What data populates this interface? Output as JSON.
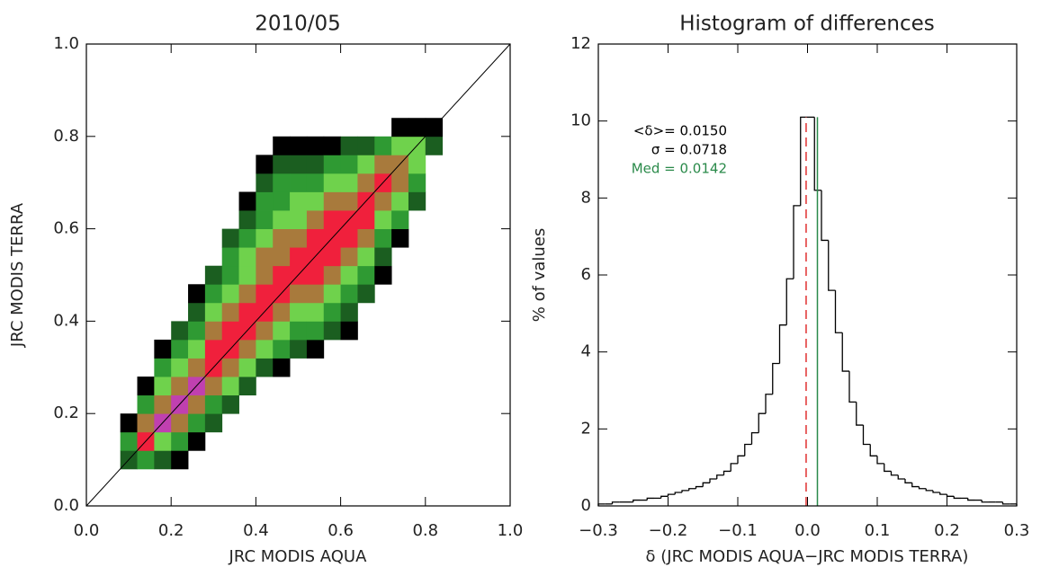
{
  "chart_data": [
    {
      "type": "heatmap",
      "title": "2010/05",
      "xlabel": "JRC MODIS AQUA",
      "ylabel": "JRC MODIS TERRA",
      "xlim": [
        0,
        1
      ],
      "ylim": [
        0,
        1
      ],
      "xticks": [
        {
          "value": 0,
          "label": "0.0"
        },
        0.2,
        0.4,
        0.6,
        0.8,
        {
          "value": 1,
          "label": "1.0"
        }
      ],
      "yticks": [
        {
          "value": 0,
          "label": "0.0"
        },
        0.2,
        0.4,
        0.6,
        0.8,
        {
          "value": 1,
          "label": "1.0"
        }
      ],
      "xbins": [
        0.08,
        0.12,
        0.16,
        0.2,
        0.24,
        0.28,
        0.32,
        0.36,
        0.4,
        0.44,
        0.48,
        0.52,
        0.56,
        0.6,
        0.64,
        0.68,
        0.72,
        0.76,
        0.8,
        0.84
      ],
      "ybins": [
        0.08,
        0.12,
        0.16,
        0.2,
        0.24,
        0.28,
        0.32,
        0.36,
        0.4,
        0.44,
        0.48,
        0.52,
        0.56,
        0.6,
        0.64,
        0.68,
        0.72,
        0.76,
        0.8,
        0.84
      ],
      "level_colors": [
        "#000000",
        "#1b5e20",
        "#2f9a33",
        "#6fd24c",
        "#a87a3c",
        "#f0203c",
        "#c040b0"
      ],
      "diagonal": true,
      "levels": [
        [
          2,
          3,
          1,
          0,
          0,
          0,
          0,
          0,
          0,
          0,
          0,
          0,
          0,
          0,
          0,
          0,
          0,
          0,
          0
        ],
        [
          3,
          6,
          5,
          3,
          1,
          0,
          0,
          0,
          0,
          0,
          0,
          0,
          0,
          0,
          0,
          0,
          0,
          0,
          0
        ],
        [
          2,
          4,
          7,
          5,
          4,
          3,
          1,
          0,
          0,
          0,
          0,
          0,
          0,
          0,
          0,
          0,
          0,
          0,
          0
        ],
        [
          1,
          3,
          5,
          7,
          5,
          4,
          3,
          2,
          0,
          0,
          0,
          0,
          0,
          0,
          0,
          0,
          0,
          0,
          0
        ],
        [
          0,
          1,
          3,
          5,
          7,
          5,
          4,
          3,
          2,
          1,
          0,
          0,
          0,
          0,
          0,
          0,
          0,
          0,
          0
        ],
        [
          0,
          0,
          2,
          3,
          5,
          6,
          6,
          5,
          4,
          3,
          2,
          0,
          0,
          0,
          0,
          0,
          0,
          0,
          0
        ],
        [
          0,
          0,
          0,
          2,
          4,
          5,
          6,
          6,
          5,
          4,
          3,
          3,
          2,
          0,
          0,
          0,
          0,
          0,
          0
        ],
        [
          0,
          0,
          0,
          0,
          2,
          4,
          5,
          6,
          6,
          5,
          4,
          4,
          3,
          2,
          1,
          0,
          0,
          0,
          0
        ],
        [
          0,
          0,
          0,
          0,
          0,
          2,
          4,
          5,
          6,
          6,
          5,
          5,
          4,
          3,
          3,
          2,
          1,
          0,
          0
        ],
        [
          0,
          0,
          0,
          0,
          0,
          1,
          3,
          4,
          5,
          6,
          6,
          5,
          5,
          4,
          3,
          3,
          2,
          1,
          0
        ],
        [
          0,
          0,
          0,
          0,
          0,
          0,
          2,
          3,
          4,
          5,
          6,
          6,
          5,
          4,
          4,
          3,
          2,
          1,
          0
        ],
        [
          0,
          0,
          0,
          0,
          0,
          0,
          1,
          3,
          4,
          5,
          6,
          6,
          6,
          5,
          4,
          3,
          2,
          1,
          0
        ],
        [
          0,
          0,
          0,
          0,
          0,
          0,
          0,
          2,
          3,
          4,
          5,
          6,
          6,
          6,
          5,
          4,
          3,
          1,
          0
        ],
        [
          0,
          0,
          0,
          0,
          0,
          0,
          0,
          1,
          2,
          3,
          4,
          5,
          6,
          6,
          5,
          4,
          3,
          2,
          0
        ],
        [
          0,
          0,
          0,
          0,
          0,
          0,
          0,
          0,
          0,
          2,
          3,
          4,
          5,
          6,
          6,
          5,
          4,
          2,
          0
        ],
        [
          0,
          0,
          0,
          0,
          0,
          0,
          0,
          0,
          0,
          0,
          1,
          2,
          3,
          4,
          5,
          6,
          5,
          3,
          0
        ],
        [
          0,
          0,
          0,
          0,
          0,
          0,
          0,
          0,
          0,
          0,
          0,
          0,
          1,
          3,
          4,
          5,
          5,
          4,
          1
        ],
        [
          0,
          0,
          0,
          0,
          0,
          0,
          0,
          0,
          0,
          0,
          0,
          0,
          0,
          0,
          2,
          3,
          4,
          4,
          1
        ],
        [
          0,
          0,
          0,
          0,
          0,
          0,
          0,
          0,
          0,
          0,
          0,
          0,
          0,
          0,
          0,
          0,
          0,
          2,
          1
        ]
      ]
    },
    {
      "type": "histogram",
      "title": "Histogram of differences",
      "xlabel": "δ (JRC MODIS AQUA−JRC MODIS TERRA)",
      "ylabel": "% of values",
      "xlim": [
        -0.3,
        0.3
      ],
      "ylim": [
        0,
        12
      ],
      "xticks": [
        {
          "value": -0.3,
          "label": "−0.3"
        },
        {
          "value": -0.2,
          "label": "−0.2"
        },
        {
          "value": -0.1,
          "label": "−0.1"
        },
        {
          "value": 0,
          "label": "0.0"
        },
        0.1,
        0.2,
        0.3
      ],
      "yticks": [
        0,
        2,
        4,
        6,
        8,
        10,
        12
      ],
      "color": "#000000",
      "bins": [
        -0.3,
        -0.29,
        -0.28,
        -0.27,
        -0.26,
        -0.25,
        -0.24,
        -0.23,
        -0.22,
        -0.21,
        -0.2,
        -0.19,
        -0.18,
        -0.17,
        -0.16,
        -0.15,
        -0.14,
        -0.13,
        -0.12,
        -0.11,
        -0.1,
        -0.09,
        -0.08,
        -0.07,
        -0.06,
        -0.05,
        -0.04,
        -0.03,
        -0.02,
        -0.01,
        0.0,
        0.01,
        0.02,
        0.03,
        0.04,
        0.05,
        0.06,
        0.07,
        0.08,
        0.09,
        0.1,
        0.11,
        0.12,
        0.13,
        0.14,
        0.15,
        0.16,
        0.17,
        0.18,
        0.19,
        0.2,
        0.21,
        0.22,
        0.23,
        0.24,
        0.25,
        0.26,
        0.27,
        0.28,
        0.29,
        0.3
      ],
      "values": [
        0.05,
        0.05,
        0.1,
        0.1,
        0.1,
        0.15,
        0.15,
        0.2,
        0.2,
        0.25,
        0.3,
        0.35,
        0.4,
        0.45,
        0.5,
        0.6,
        0.7,
        0.8,
        0.9,
        1.1,
        1.3,
        1.6,
        1.9,
        2.4,
        2.9,
        3.7,
        4.7,
        5.9,
        7.8,
        10.1,
        10.1,
        8.2,
        6.9,
        5.6,
        4.5,
        3.5,
        2.7,
        2.1,
        1.6,
        1.3,
        1.1,
        0.9,
        0.8,
        0.7,
        0.6,
        0.5,
        0.45,
        0.4,
        0.35,
        0.3,
        0.25,
        0.2,
        0.2,
        0.15,
        0.15,
        0.1,
        0.1,
        0.1,
        0.05,
        0.05
      ],
      "vlines": [
        {
          "value": -0.002,
          "color": "#e03030",
          "dashed": true
        },
        {
          "value": 0.0142,
          "color": "#2a8a4a",
          "dashed": false
        }
      ],
      "annotations": [
        {
          "text": "<δ>= 0.0150",
          "color": "#000000"
        },
        {
          "text": "σ = 0.0718",
          "color": "#000000"
        },
        {
          "text": "Med = 0.0142",
          "color": "#2a8a4a"
        }
      ]
    }
  ]
}
